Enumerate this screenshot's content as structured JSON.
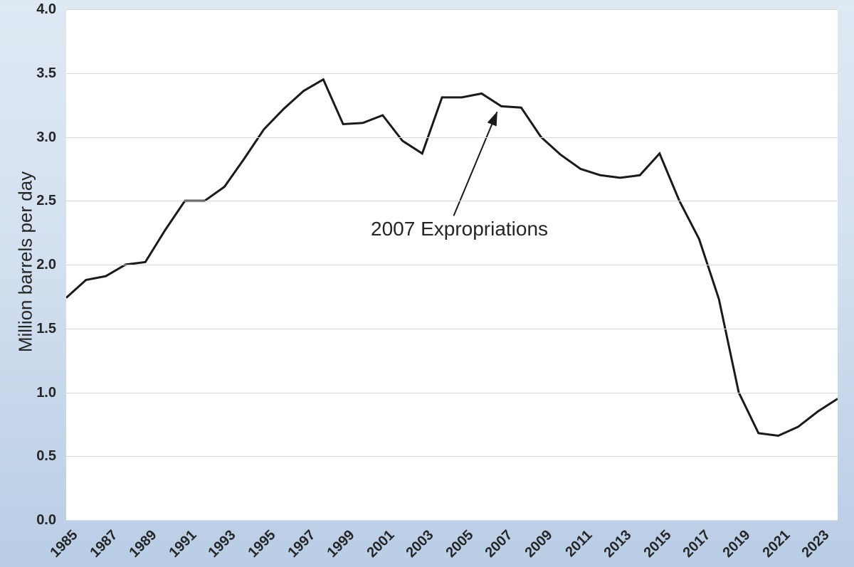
{
  "figure": {
    "background_top": "#dfe9f4",
    "background_bottom": "#b9cde6",
    "plot_background": "#ffffff",
    "gridline_color": "#d9d9d9",
    "line_color": "#1a1a1a",
    "text_color": "#262626"
  },
  "chart_data": {
    "type": "line",
    "title": "",
    "xlabel": "",
    "ylabel": "Million barrels per day",
    "ylim": [
      0.0,
      4.0
    ],
    "yticks": [
      "0.0",
      "0.5",
      "1.0",
      "1.5",
      "2.0",
      "2.5",
      "3.0",
      "3.5",
      "4.0"
    ],
    "xtick_labels": [
      "1985",
      "1987",
      "1989",
      "1991",
      "1993",
      "1995",
      "1997",
      "1999",
      "2001",
      "2003",
      "2005",
      "2007",
      "2009",
      "2011",
      "2013",
      "2015",
      "2017",
      "2019",
      "2021",
      "2023"
    ],
    "grid": "horizontal",
    "legend": "none",
    "x": [
      1985,
      1986,
      1987,
      1988,
      1989,
      1990,
      1991,
      1992,
      1993,
      1994,
      1995,
      1996,
      1997,
      1998,
      1999,
      2000,
      2001,
      2002,
      2003,
      2004,
      2005,
      2006,
      2007,
      2008,
      2009,
      2010,
      2011,
      2012,
      2013,
      2014,
      2015,
      2016,
      2017,
      2018,
      2019,
      2020,
      2021,
      2022,
      2023,
      2024
    ],
    "values": [
      1.74,
      1.88,
      1.91,
      2.0,
      2.02,
      2.27,
      2.5,
      2.5,
      2.61,
      2.83,
      3.06,
      3.22,
      3.36,
      3.45,
      3.1,
      3.11,
      3.17,
      2.97,
      2.87,
      3.31,
      3.31,
      3.34,
      3.24,
      3.23,
      3.0,
      2.86,
      2.75,
      2.7,
      2.68,
      2.7,
      2.87,
      2.5,
      2.2,
      1.73,
      1.0,
      0.68,
      0.66,
      0.73,
      0.85,
      0.95
    ],
    "annotation": {
      "label": "2007 Expropriations",
      "target_year": 2007
    }
  }
}
